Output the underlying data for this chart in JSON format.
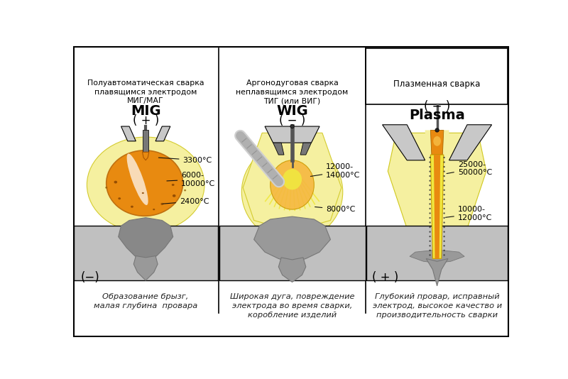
{
  "bg_color": "#ffffff",
  "fig_width": 8.0,
  "fig_height": 5.34,
  "dpi": 100,
  "panel_titles": [
    "Полуавтоматическая сварка\nплавящимся электродом\nМИГ/МАГ",
    "Аргонодуговая сварка\nнеплавящимся электродом\nТИГ (или ВИГ)",
    "Плазменная сварка"
  ],
  "captions": [
    "Образование брызг,\nмалая глубина  провара",
    "Широкая дуга, повреждение\nэлектрода во время сварки,\nкоробление изделий",
    "Глубокий провар, исправный\nэлектрод, высокое качество и\nпроизводительность сварки"
  ],
  "yellow": "#f5f0a0",
  "yellow2": "#f0e840",
  "orange": "#e88a10",
  "orange2": "#f5b840",
  "white_hot": "#ffffff",
  "gray_light": "#c8c8c8",
  "gray_med": "#999999",
  "gray_dark": "#777777",
  "gray_darker": "#555555",
  "metal_plate": "#c0c0c0",
  "weld_gray": "#888888",
  "black": "#111111"
}
